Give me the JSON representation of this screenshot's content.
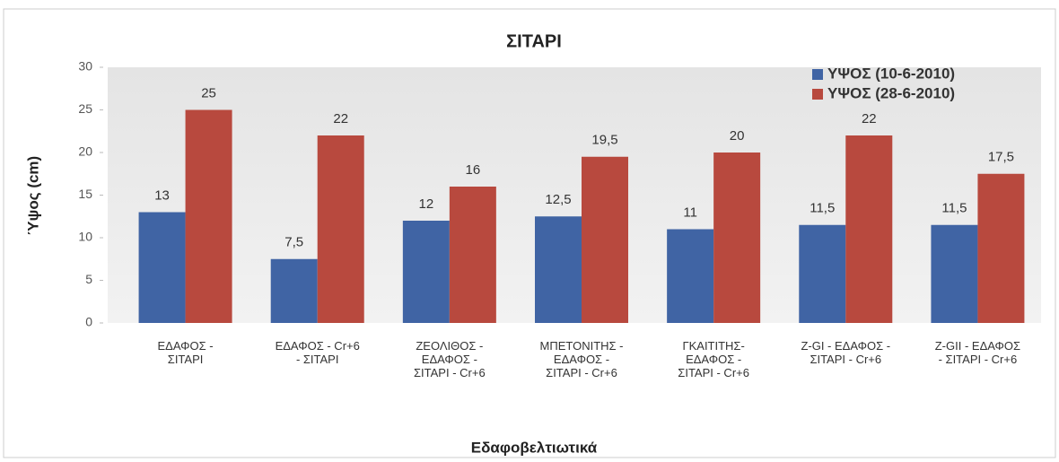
{
  "chart_data": {
    "type": "bar",
    "title": "ΣΙΤΑΡΙ",
    "x_label": "Εδαφοβελτιωτικά",
    "y_label": "Ύψος (cm)",
    "categories": [
      "ΕΔΑΦΟΣ -\nΣΙΤΑΡΙ",
      "ΕΔΑΦΟΣ  - Cr+6\n- ΣΙΤΑΡΙ",
      "ΖΕΟΛΙΘΟΣ -\nΕΔΑΦΟΣ -\nΣΙΤΑΡΙ - Cr+6",
      "ΜΠΕΤΟΝΙΤΗΣ -\nΕΔΑΦΟΣ -\nΣΙΤΑΡΙ - Cr+6",
      "ΓΚΑΙΤΙΤΗΣ-\nΕΔΑΦΟΣ -\nΣΙΤΑΡΙ - Cr+6",
      "Z-GI - ΕΔΑΦΟΣ -\nΣΙΤΑΡΙ - Cr+6",
      "Z-GII - ΕΔΑΦΟΣ\n- ΣΙΤΑΡΙ - Cr+6"
    ],
    "series": [
      {
        "name": "ΥΨΟΣ (10-6-2010)",
        "color": "#4064a4",
        "values": [
          13,
          7.5,
          12,
          12.5,
          11,
          11.5,
          11.5
        ],
        "value_labels": [
          "13",
          "7,5",
          "12",
          "12,5",
          "11",
          "11,5",
          "11,5"
        ]
      },
      {
        "name": "ΥΨΟΣ (28-6-2010)",
        "color": "#b8493e",
        "values": [
          25,
          22,
          16,
          19.5,
          20,
          22,
          17.5
        ],
        "value_labels": [
          "25",
          "22",
          "16",
          "19,5",
          "20",
          "22",
          "17,5"
        ]
      }
    ],
    "ylim": [
      0,
      30
    ],
    "yticks": [
      0,
      5,
      10,
      15,
      20,
      25,
      30
    ],
    "grid": false,
    "legend": "top-right"
  }
}
